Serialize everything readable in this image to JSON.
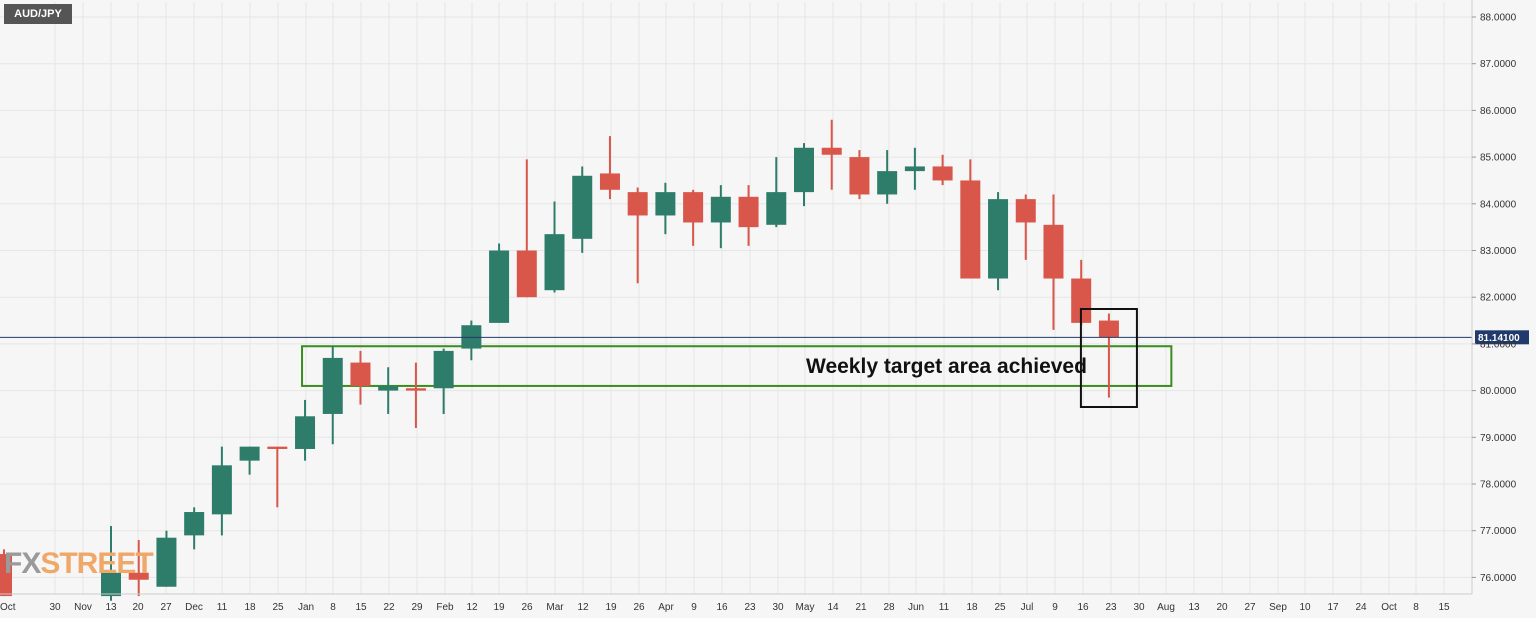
{
  "symbol": "AUD/JPY",
  "annotation": "Weekly target area achieved",
  "watermark": {
    "part1": "FX",
    "part2": "STREET"
  },
  "colors": {
    "bullish": "#2e7d6b",
    "bearish": "#d9564a",
    "box": "#3a8c1e",
    "highlight_box": "#111111",
    "current_price_line": "#1f3a6b",
    "grid": "#e6e6e6",
    "background": "#f6f6f6"
  },
  "chart_data": {
    "type": "candlestick",
    "title": "AUD/JPY",
    "timeframe": "weekly",
    "ylim": [
      75.6,
      88.3
    ],
    "y_ticks": [
      "88.0000",
      "87.0000",
      "86.0000",
      "85.0000",
      "84.0000",
      "83.0000",
      "82.0000",
      "81.0000",
      "80.0000",
      "79.0000",
      "78.0000",
      "77.0000",
      "76.0000"
    ],
    "x_ticks": [
      "Oct",
      "30",
      "Nov",
      "13",
      "20",
      "27",
      "Dec",
      "11",
      "18",
      "25",
      "Jan",
      "8",
      "15",
      "22",
      "29",
      "Feb",
      "12",
      "19",
      "26",
      "Mar",
      "12",
      "19",
      "26",
      "Apr",
      "9",
      "16",
      "23",
      "30",
      "May",
      "14",
      "21",
      "28",
      "Jun",
      "11",
      "18",
      "25",
      "Jul",
      "9",
      "16",
      "23",
      "30",
      "Aug",
      "13",
      "20",
      "27",
      "Sep",
      "10",
      "17",
      "24",
      "Oct",
      "8",
      "15"
    ],
    "current_price": 81.141,
    "current_price_label": "81.14100",
    "target_area": {
      "from_week": "Jan 1",
      "to_week": "Aug 6",
      "low": 80.1,
      "high": 80.95
    },
    "highlighted_week": "Jul 23",
    "candles": [
      {
        "week": "Oct 2",
        "open": 76.5,
        "high": 76.6,
        "low": 75.6,
        "close": 75.6
      },
      {
        "week": "Nov 13",
        "open": 75.6,
        "high": 77.1,
        "low": 75.5,
        "close": 76.1
      },
      {
        "week": "Nov 20",
        "open": 76.1,
        "high": 76.8,
        "low": 75.6,
        "close": 75.95
      },
      {
        "week": "Nov 27",
        "open": 75.8,
        "high": 77.0,
        "low": 75.8,
        "close": 76.85
      },
      {
        "week": "Dec 4",
        "open": 76.9,
        "high": 77.5,
        "low": 76.6,
        "close": 77.4
      },
      {
        "week": "Dec 11",
        "open": 77.35,
        "high": 78.8,
        "low": 76.9,
        "close": 78.4
      },
      {
        "week": "Dec 18",
        "open": 78.5,
        "high": 78.8,
        "low": 78.2,
        "close": 78.8
      },
      {
        "week": "Dec 25",
        "open": 78.8,
        "high": 78.8,
        "low": 77.5,
        "close": 78.75
      },
      {
        "week": "Jan 1",
        "open": 78.75,
        "high": 79.8,
        "low": 78.5,
        "close": 79.45
      },
      {
        "week": "Jan 8",
        "open": 79.5,
        "high": 80.95,
        "low": 78.85,
        "close": 80.7
      },
      {
        "week": "Jan 15",
        "open": 80.6,
        "high": 80.85,
        "low": 79.7,
        "close": 80.1
      },
      {
        "week": "Jan 22",
        "open": 80.0,
        "high": 80.5,
        "low": 79.5,
        "close": 80.1
      },
      {
        "week": "Jan 29",
        "open": 80.05,
        "high": 80.6,
        "low": 79.2,
        "close": 80.0
      },
      {
        "week": "Feb 5",
        "open": 80.05,
        "high": 80.9,
        "low": 79.5,
        "close": 80.85
      },
      {
        "week": "Feb 12",
        "open": 80.9,
        "high": 81.5,
        "low": 80.65,
        "close": 81.4
      },
      {
        "week": "Feb 19",
        "open": 81.45,
        "high": 83.15,
        "low": 81.45,
        "close": 83.0
      },
      {
        "week": "Feb 26",
        "open": 83.0,
        "high": 84.95,
        "low": 82.0,
        "close": 82.0
      },
      {
        "week": "Mar 5",
        "open": 82.15,
        "high": 84.05,
        "low": 82.1,
        "close": 83.35
      },
      {
        "week": "Mar 12",
        "open": 83.25,
        "high": 84.8,
        "low": 82.95,
        "close": 84.6
      },
      {
        "week": "Mar 19",
        "open": 84.65,
        "high": 85.45,
        "low": 84.1,
        "close": 84.3
      },
      {
        "week": "Mar 26",
        "open": 84.25,
        "high": 84.35,
        "low": 82.3,
        "close": 83.75
      },
      {
        "week": "Apr 2",
        "open": 83.75,
        "high": 84.45,
        "low": 83.35,
        "close": 84.25
      },
      {
        "week": "Apr 9",
        "open": 84.25,
        "high": 84.3,
        "low": 83.1,
        "close": 83.6
      },
      {
        "week": "Apr 16",
        "open": 83.6,
        "high": 84.4,
        "low": 83.05,
        "close": 84.15
      },
      {
        "week": "Apr 23",
        "open": 84.15,
        "high": 84.4,
        "low": 83.1,
        "close": 83.5
      },
      {
        "week": "Apr 30",
        "open": 83.55,
        "high": 85.0,
        "low": 83.5,
        "close": 84.25
      },
      {
        "week": "May 7",
        "open": 84.25,
        "high": 85.3,
        "low": 83.95,
        "close": 85.2
      },
      {
        "week": "May 14",
        "open": 85.2,
        "high": 85.8,
        "low": 84.3,
        "close": 85.05
      },
      {
        "week": "May 21",
        "open": 85.0,
        "high": 85.15,
        "low": 84.1,
        "close": 84.2
      },
      {
        "week": "May 28",
        "open": 84.2,
        "high": 85.15,
        "low": 84.0,
        "close": 84.7
      },
      {
        "week": "Jun 4",
        "open": 84.7,
        "high": 85.2,
        "low": 84.3,
        "close": 84.8
      },
      {
        "week": "Jun 11",
        "open": 84.8,
        "high": 85.05,
        "low": 84.4,
        "close": 84.5
      },
      {
        "week": "Jun 18",
        "open": 84.5,
        "high": 84.95,
        "low": 82.4,
        "close": 82.4
      },
      {
        "week": "Jun 25",
        "open": 82.4,
        "high": 84.25,
        "low": 82.15,
        "close": 84.1
      },
      {
        "week": "Jul 2",
        "open": 84.1,
        "high": 84.2,
        "low": 82.8,
        "close": 83.6
      },
      {
        "week": "Jul 9",
        "open": 83.55,
        "high": 84.2,
        "low": 81.3,
        "close": 82.4
      },
      {
        "week": "Jul 16",
        "open": 82.4,
        "high": 82.8,
        "low": 81.4,
        "close": 81.45
      },
      {
        "week": "Jul 23",
        "open": 81.5,
        "high": 81.65,
        "low": 79.85,
        "close": 81.14
      }
    ]
  }
}
